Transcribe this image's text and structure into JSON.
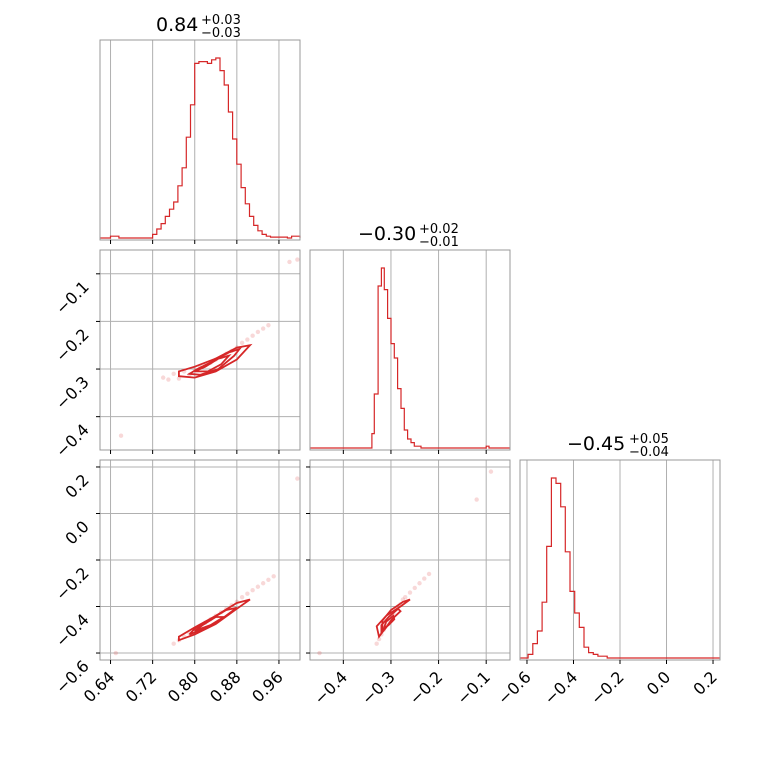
{
  "colors": {
    "accent": "#d62728",
    "grid": "#b0b0b0",
    "frame": "#999999"
  },
  "chart_data": {
    "type": "scatter",
    "subtype": "corner",
    "parameters": [
      {
        "title": {
          "median": "0.84",
          "plus": "+0.03",
          "minus": "−0.03"
        },
        "range": [
          0.62,
          1.0
        ]
      },
      {
        "title": {
          "median": "−0.30",
          "plus": "+0.02",
          "minus": "−0.01"
        },
        "range": [
          -0.47,
          -0.05
        ]
      },
      {
        "title": {
          "median": "−0.45",
          "plus": "+0.05",
          "minus": "−0.04"
        },
        "range": [
          -0.63,
          0.23
        ]
      }
    ],
    "ticks": {
      "p1": {
        "values": [
          0.64,
          0.72,
          0.8,
          0.88,
          0.96
        ],
        "labels": [
          "0.64",
          "0.72",
          "0.80",
          "0.88",
          "0.96"
        ]
      },
      "p2": {
        "values": [
          -0.4,
          -0.3,
          -0.2,
          -0.1
        ],
        "labels": [
          "−0.4",
          "−0.3",
          "−0.2",
          "−0.1"
        ]
      },
      "p3": {
        "values": [
          -0.6,
          -0.4,
          -0.2,
          0.0,
          0.2
        ],
        "labels": [
          "−0.6",
          "−0.4",
          "−0.2",
          "0.0",
          "0.2"
        ]
      }
    },
    "histograms": {
      "p1": {
        "bins": [
          [
            0.62,
            0
          ],
          [
            0.632,
            0
          ],
          [
            0.64,
            0.01
          ],
          [
            0.656,
            0
          ],
          [
            0.72,
            0.02
          ],
          [
            0.728,
            0.05
          ],
          [
            0.736,
            0.08
          ],
          [
            0.744,
            0.12
          ],
          [
            0.752,
            0.16
          ],
          [
            0.76,
            0.2
          ],
          [
            0.768,
            0.29
          ],
          [
            0.776,
            0.39
          ],
          [
            0.784,
            0.56
          ],
          [
            0.792,
            0.74
          ],
          [
            0.8,
            0.97
          ],
          [
            0.808,
            0.98
          ],
          [
            0.816,
            0.98
          ],
          [
            0.824,
            0.97
          ],
          [
            0.832,
            0.99
          ],
          [
            0.84,
            1.0
          ],
          [
            0.848,
            0.93
          ],
          [
            0.856,
            0.85
          ],
          [
            0.864,
            0.7
          ],
          [
            0.872,
            0.55
          ],
          [
            0.88,
            0.41
          ],
          [
            0.888,
            0.28
          ],
          [
            0.896,
            0.19
          ],
          [
            0.904,
            0.12
          ],
          [
            0.912,
            0.07
          ],
          [
            0.92,
            0.04
          ],
          [
            0.928,
            0.02
          ],
          [
            0.936,
            0.01
          ],
          [
            0.944,
            0.005
          ],
          [
            0.96,
            0.005
          ],
          [
            0.976,
            0
          ],
          [
            0.984,
            0.01
          ],
          [
            0.992,
            0.01
          ],
          [
            1.0,
            0
          ]
        ]
      },
      "p2": {
        "bins": [
          [
            -0.47,
            0
          ],
          [
            -0.346,
            0
          ],
          [
            -0.34,
            0.08
          ],
          [
            -0.335,
            0.3
          ],
          [
            -0.327,
            0.9
          ],
          [
            -0.32,
            1.0
          ],
          [
            -0.314,
            0.88
          ],
          [
            -0.307,
            0.72
          ],
          [
            -0.3,
            0.58
          ],
          [
            -0.293,
            0.5
          ],
          [
            -0.286,
            0.33
          ],
          [
            -0.279,
            0.22
          ],
          [
            -0.272,
            0.1
          ],
          [
            -0.265,
            0.05
          ],
          [
            -0.258,
            0.03
          ],
          [
            -0.251,
            0.01
          ],
          [
            -0.244,
            0.01
          ],
          [
            -0.237,
            0
          ],
          [
            -0.1,
            0.01
          ],
          [
            -0.094,
            0
          ],
          [
            -0.05,
            0
          ]
        ]
      },
      "p3": {
        "bins": [
          [
            -0.63,
            0
          ],
          [
            -0.595,
            0.02
          ],
          [
            -0.575,
            0.08
          ],
          [
            -0.555,
            0.15
          ],
          [
            -0.535,
            0.31
          ],
          [
            -0.515,
            0.62
          ],
          [
            -0.495,
            1.0
          ],
          [
            -0.475,
            0.97
          ],
          [
            -0.455,
            0.84
          ],
          [
            -0.435,
            0.59
          ],
          [
            -0.415,
            0.37
          ],
          [
            -0.395,
            0.25
          ],
          [
            -0.375,
            0.17
          ],
          [
            -0.355,
            0.06
          ],
          [
            -0.335,
            0.03
          ],
          [
            -0.315,
            0.02
          ],
          [
            -0.295,
            0.01
          ],
          [
            -0.275,
            0.01
          ],
          [
            -0.255,
            0
          ],
          [
            0.23,
            0
          ]
        ]
      }
    },
    "scatter": {
      "p1_vs_p2": {
        "points": [
          [
            0.74,
            -0.318
          ],
          [
            0.75,
            -0.322
          ],
          [
            0.76,
            -0.31
          ],
          [
            0.77,
            -0.32
          ],
          [
            0.78,
            -0.305
          ],
          [
            0.79,
            -0.312
          ],
          [
            0.8,
            -0.3
          ],
          [
            0.81,
            -0.295
          ],
          [
            0.82,
            -0.29
          ],
          [
            0.83,
            -0.287
          ],
          [
            0.84,
            -0.28
          ],
          [
            0.85,
            -0.275
          ],
          [
            0.86,
            -0.268
          ],
          [
            0.87,
            -0.262
          ],
          [
            0.88,
            -0.255
          ],
          [
            0.89,
            -0.245
          ],
          [
            0.9,
            -0.238
          ],
          [
            0.91,
            -0.23
          ],
          [
            0.92,
            -0.222
          ],
          [
            0.93,
            -0.215
          ],
          [
            0.94,
            -0.208
          ],
          [
            0.66,
            -0.44
          ],
          [
            0.98,
            -0.075
          ],
          [
            0.995,
            -0.07
          ]
        ],
        "contours": [
          [
            [
              0.77,
              -0.315
            ],
            [
              0.8,
              -0.318
            ],
            [
              0.84,
              -0.305
            ],
            [
              0.88,
              -0.28
            ],
            [
              0.905,
              -0.25
            ],
            [
              0.88,
              -0.255
            ],
            [
              0.84,
              -0.278
            ],
            [
              0.8,
              -0.295
            ],
            [
              0.77,
              -0.305
            ]
          ],
          [
            [
              0.79,
              -0.31
            ],
            [
              0.81,
              -0.312
            ],
            [
              0.845,
              -0.3
            ],
            [
              0.875,
              -0.272
            ],
            [
              0.885,
              -0.258
            ],
            [
              0.865,
              -0.265
            ],
            [
              0.835,
              -0.283
            ],
            [
              0.805,
              -0.3
            ]
          ],
          [
            [
              0.8,
              -0.305
            ],
            [
              0.825,
              -0.305
            ],
            [
              0.85,
              -0.29
            ],
            [
              0.865,
              -0.272
            ],
            [
              0.845,
              -0.278
            ],
            [
              0.82,
              -0.295
            ]
          ]
        ]
      },
      "p1_vs_p3": {
        "points": [
          [
            0.76,
            -0.56
          ],
          [
            0.77,
            -0.545
          ],
          [
            0.78,
            -0.53
          ],
          [
            0.79,
            -0.515
          ],
          [
            0.8,
            -0.5
          ],
          [
            0.81,
            -0.485
          ],
          [
            0.82,
            -0.47
          ],
          [
            0.83,
            -0.455
          ],
          [
            0.84,
            -0.44
          ],
          [
            0.85,
            -0.425
          ],
          [
            0.86,
            -0.41
          ],
          [
            0.87,
            -0.395
          ],
          [
            0.88,
            -0.38
          ],
          [
            0.89,
            -0.36
          ],
          [
            0.9,
            -0.345
          ],
          [
            0.91,
            -0.33
          ],
          [
            0.92,
            -0.315
          ],
          [
            0.93,
            -0.3
          ],
          [
            0.94,
            -0.285
          ],
          [
            0.95,
            -0.27
          ],
          [
            0.65,
            -0.6
          ],
          [
            0.995,
            0.15
          ]
        ],
        "contours": [
          [
            [
              0.77,
              -0.545
            ],
            [
              0.8,
              -0.52
            ],
            [
              0.84,
              -0.475
            ],
            [
              0.88,
              -0.41
            ],
            [
              0.905,
              -0.37
            ],
            [
              0.88,
              -0.385
            ],
            [
              0.84,
              -0.44
            ],
            [
              0.8,
              -0.49
            ],
            [
              0.77,
              -0.53
            ]
          ],
          [
            [
              0.79,
              -0.52
            ],
            [
              0.82,
              -0.495
            ],
            [
              0.85,
              -0.455
            ],
            [
              0.88,
              -0.405
            ],
            [
              0.86,
              -0.415
            ],
            [
              0.83,
              -0.455
            ],
            [
              0.8,
              -0.495
            ]
          ],
          [
            [
              0.8,
              -0.505
            ],
            [
              0.83,
              -0.48
            ],
            [
              0.855,
              -0.445
            ],
            [
              0.84,
              -0.445
            ],
            [
              0.815,
              -0.48
            ]
          ]
        ]
      },
      "p2_vs_p3": {
        "points": [
          [
            -0.33,
            -0.56
          ],
          [
            -0.325,
            -0.54
          ],
          [
            -0.32,
            -0.52
          ],
          [
            -0.315,
            -0.5
          ],
          [
            -0.31,
            -0.48
          ],
          [
            -0.305,
            -0.46
          ],
          [
            -0.3,
            -0.44
          ],
          [
            -0.295,
            -0.43
          ],
          [
            -0.29,
            -0.41
          ],
          [
            -0.285,
            -0.4
          ],
          [
            -0.28,
            -0.39
          ],
          [
            -0.275,
            -0.37
          ],
          [
            -0.27,
            -0.36
          ],
          [
            -0.26,
            -0.34
          ],
          [
            -0.25,
            -0.32
          ],
          [
            -0.24,
            -0.3
          ],
          [
            -0.23,
            -0.28
          ],
          [
            -0.22,
            -0.26
          ],
          [
            -0.45,
            -0.6
          ],
          [
            -0.12,
            0.06
          ],
          [
            -0.09,
            0.18
          ]
        ],
        "contours": [
          [
            [
              -0.325,
              -0.53
            ],
            [
              -0.33,
              -0.485
            ],
            [
              -0.31,
              -0.44
            ],
            [
              -0.28,
              -0.4
            ],
            [
              -0.26,
              -0.37
            ],
            [
              -0.275,
              -0.38
            ],
            [
              -0.3,
              -0.415
            ],
            [
              -0.318,
              -0.46
            ],
            [
              -0.318,
              -0.51
            ]
          ],
          [
            [
              -0.32,
              -0.515
            ],
            [
              -0.32,
              -0.48
            ],
            [
              -0.305,
              -0.445
            ],
            [
              -0.285,
              -0.41
            ],
            [
              -0.28,
              -0.42
            ],
            [
              -0.298,
              -0.455
            ],
            [
              -0.31,
              -0.49
            ]
          ],
          [
            [
              -0.315,
              -0.495
            ],
            [
              -0.31,
              -0.465
            ],
            [
              -0.295,
              -0.44
            ],
            [
              -0.293,
              -0.455
            ],
            [
              -0.305,
              -0.48
            ]
          ]
        ]
      }
    }
  }
}
